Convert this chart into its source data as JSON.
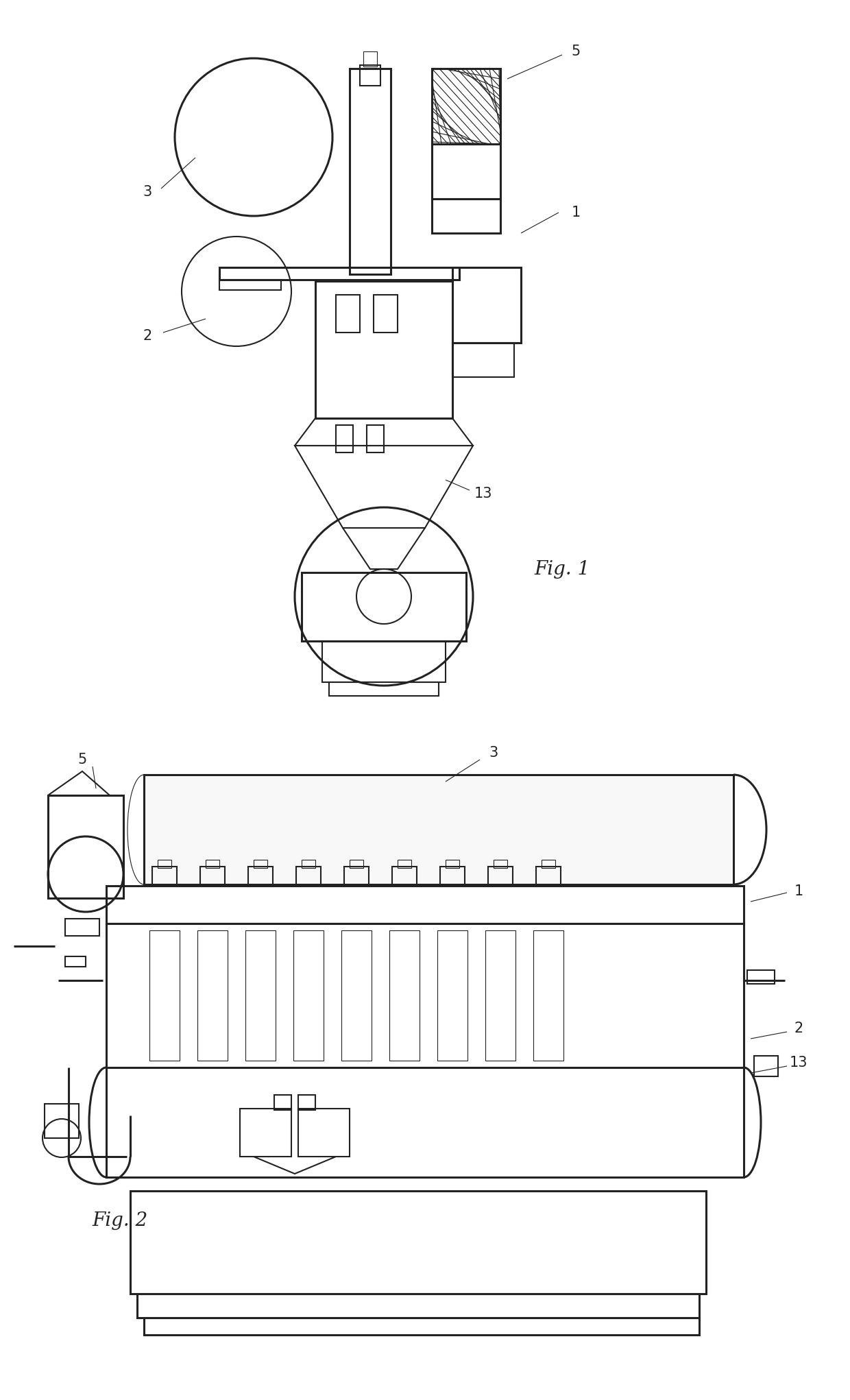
{
  "fig_width": 12.4,
  "fig_height": 20.42,
  "bg_color": "#ffffff",
  "lc": "#222222",
  "lw": 1.5,
  "tlw": 2.2,
  "slw": 0.8,
  "label_fs": 15,
  "figlabel_fs": 20
}
